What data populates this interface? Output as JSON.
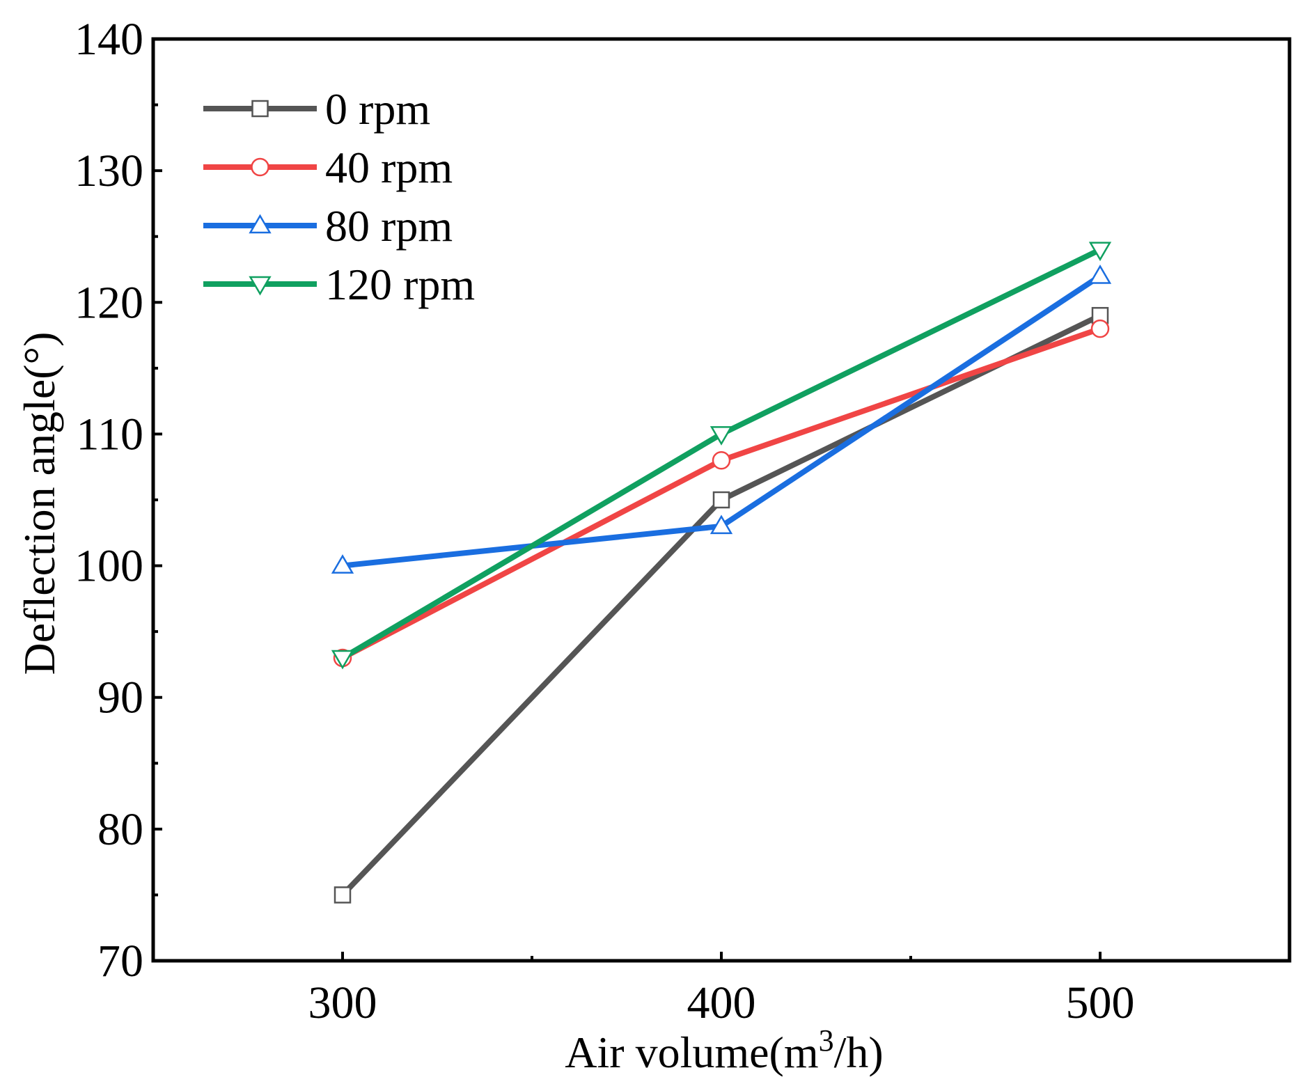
{
  "chart_data": {
    "type": "line",
    "title": "",
    "xlabel": "Air volume(m",
    "xlabel_superscript": "3",
    "xlabel_suffix": "/h)",
    "ylabel": "Deflection angle(°)",
    "x": [
      300,
      400,
      500
    ],
    "xlim": [
      250,
      550
    ],
    "ylim": [
      70,
      140
    ],
    "xticks": [
      300,
      400,
      500
    ],
    "xtick_labels": [
      "300",
      "400",
      "500"
    ],
    "yticks": [
      70,
      80,
      90,
      100,
      110,
      120,
      130,
      140
    ],
    "ytick_labels": [
      "70",
      "80",
      "90",
      "100",
      "110",
      "120",
      "130",
      "140"
    ],
    "grid": false,
    "legend_position": "top-left",
    "series": [
      {
        "name": "0 rpm",
        "values": [
          75,
          105,
          119
        ],
        "color": "#555555",
        "marker": "square"
      },
      {
        "name": "40 rpm",
        "values": [
          93,
          108,
          118
        ],
        "color": "#f04545",
        "marker": "circle"
      },
      {
        "name": "80 rpm",
        "values": [
          100,
          103,
          122
        ],
        "color": "#1a6ee0",
        "marker": "triangle-up"
      },
      {
        "name": "120 rpm",
        "values": [
          93,
          110,
          124
        ],
        "color": "#10a060",
        "marker": "triangle-down"
      }
    ]
  }
}
